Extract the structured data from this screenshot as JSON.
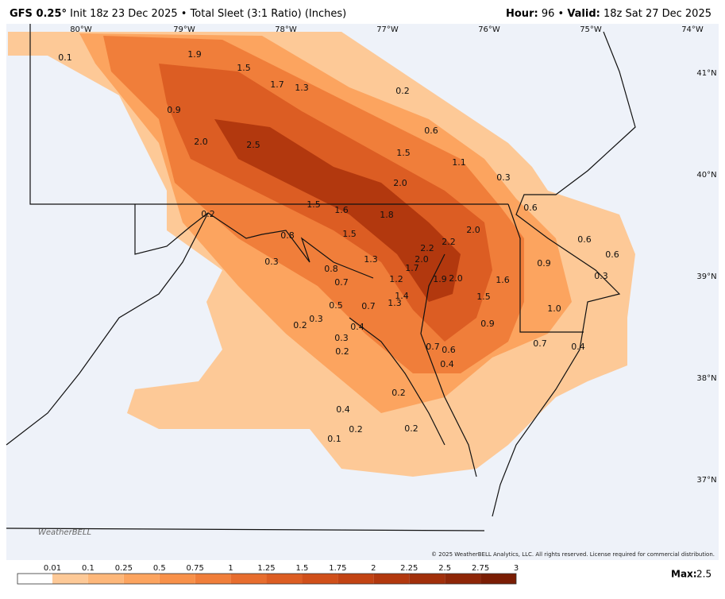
{
  "header": {
    "model": "GFS 0.25°",
    "init": "Init 18z 23 Dec 2025",
    "product": "Total Sleet (3:1 Ratio) (Inches)",
    "hour_label": "Hour:",
    "hour": "96",
    "valid_label": "Valid:",
    "valid": "18z Sat 27 Dec 2025"
  },
  "longitudes": [
    "80°W",
    "79°W",
    "78°W",
    "77°W",
    "76°W",
    "75°W",
    "74°W"
  ],
  "latitudes": [
    "41°N",
    "40°N",
    "39°N",
    "38°N",
    "37°N"
  ],
  "point_values": [
    "0.1",
    "1.9",
    "1.5",
    "1.7",
    "1.3",
    "0.2",
    "0.9",
    "0.6",
    "2.0",
    "2.5",
    "1.5",
    "1.1",
    "0.3",
    "2.0",
    "1.5",
    "1.6",
    "1.8",
    "0.6",
    "0.2",
    "0.8",
    "1.5",
    "2.0",
    "2.2",
    "2.2",
    "0.6",
    "0.3",
    "1.3",
    "2.0",
    "1.7",
    "0.9",
    "0.6",
    "0.8",
    "1.2",
    "1.9",
    "2.0",
    "1.6",
    "0.3",
    "0.7",
    "1.4",
    "1.5",
    "0.5",
    "0.7",
    "1.3",
    "1.0",
    "0.3",
    "0.2",
    "0.9",
    "0.4",
    "0.3",
    "0.7",
    "0.6",
    "0.7",
    "0.4",
    "0.2",
    "0.4",
    "0.2",
    "0.4",
    "0.2",
    "0.2",
    "0.1"
  ],
  "logo": "WeatherBELL",
  "copyright": "© 2025 WeatherBELL Analytics, LLC. All rights reserved. License required for commercial distribution.",
  "colorbar": {
    "labels": [
      0.01,
      0.1,
      0.25,
      0.5,
      0.75,
      1,
      1.25,
      1.5,
      1.75,
      2,
      2.25,
      2.5,
      2.75,
      3
    ],
    "colors": [
      "#ffffff",
      "#fdc997",
      "#fdb77a",
      "#fca45f",
      "#f8914a",
      "#f07e3a",
      "#e76d2e",
      "#dc5d23",
      "#d04f1a",
      "#c24313",
      "#b2380e",
      "#a12f0a",
      "#8e2607",
      "#7a1d04"
    ]
  },
  "max_label": "Max:",
  "max_value": "2.5"
}
